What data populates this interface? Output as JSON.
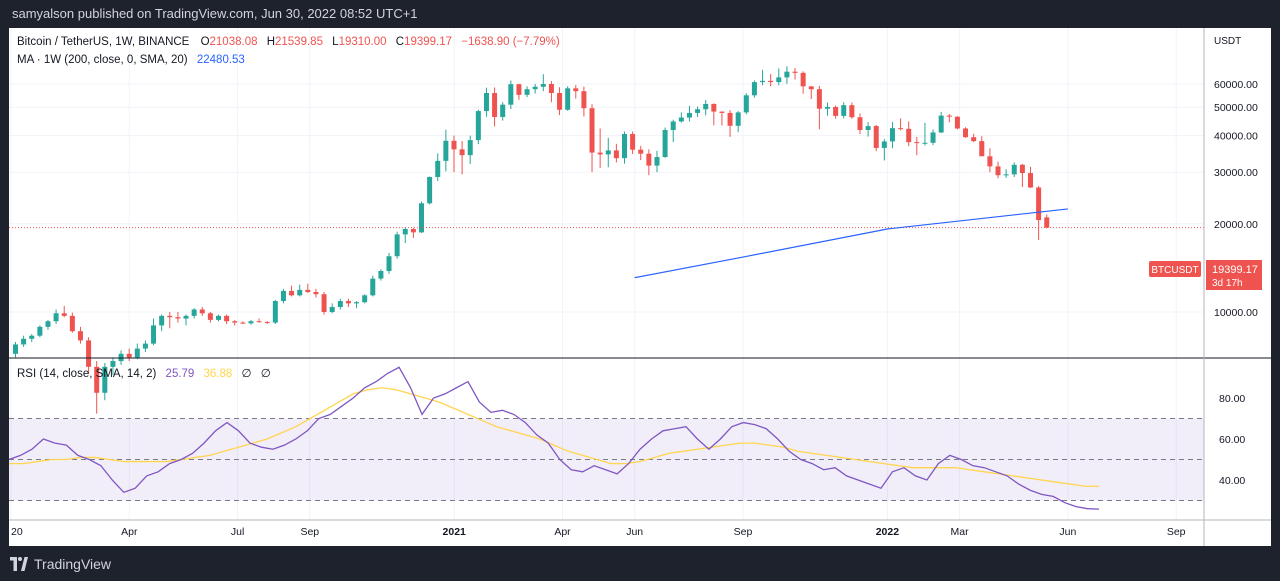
{
  "header": {
    "published_text": "samyalson published on TradingView.com, Jun 30, 2022 08:52 UTC+1"
  },
  "legend": {
    "symbol": "Bitcoin / TetherUS, 1W, BINANCE",
    "open_label": "O",
    "open": "21038.08",
    "high_label": "H",
    "high": "21539.85",
    "low_label": "L",
    "low": "19310.00",
    "close_label": "C",
    "close": "19399.17",
    "change": "−1638.90 (−7.79%)",
    "ma_label": "MA · 1W (200, close, 0, SMA, 20)",
    "ma_value": "22480.53",
    "rsi_label": "RSI (14, close, SMA, 14, 2)",
    "rsi_value": "25.79",
    "rsi_ma_value": "36.88",
    "na1": "∅",
    "na2": "∅"
  },
  "price_scale": {
    "currency": "USDT",
    "ticks": [
      "60000.00",
      "50000.00",
      "40000.00",
      "30000.00",
      "20000.00",
      "10000.00"
    ],
    "symbol_tag": "BTCUSDT",
    "last_price": "19399.17",
    "countdown": "3d 17h"
  },
  "rsi_scale": {
    "ticks": [
      "80.00",
      "60.00",
      "40.00"
    ]
  },
  "time_axis": {
    "labels": [
      "20",
      "Apr",
      "Jul",
      "Sep",
      "2021",
      "Apr",
      "Jun",
      "Sep",
      "2022",
      "Mar",
      "Jun",
      "Sep"
    ]
  },
  "footer": {
    "brand": "TradingView"
  },
  "colors": {
    "up": "#26a69a",
    "down": "#ef5350",
    "ma": "#2962ff",
    "rsi": "#7e57c2",
    "rsi_ma": "#ffd54f",
    "background": "#1e222d"
  },
  "chart_data": [
    {
      "type": "candlestick",
      "title": "Bitcoin / TetherUS, 1W, BINANCE",
      "ylim": [
        0,
        70000
      ],
      "yscale": "log",
      "x_range": [
        "2020-01",
        "2022-09"
      ],
      "candles_ohlc": [
        [
          7200,
          7900,
          7000,
          7750
        ],
        [
          7750,
          8300,
          7600,
          8100
        ],
        [
          8100,
          8400,
          7900,
          8300
        ],
        [
          8300,
          9000,
          8200,
          8900
        ],
        [
          8900,
          9400,
          8700,
          9300
        ],
        [
          9300,
          10200,
          9100,
          9900
        ],
        [
          9900,
          10500,
          9600,
          9700
        ],
        [
          9700,
          9950,
          8500,
          8600
        ],
        [
          8600,
          8900,
          7800,
          8000
        ],
        [
          8000,
          8200,
          6200,
          6500
        ],
        [
          6500,
          6800,
          4500,
          5300
        ],
        [
          5300,
          6700,
          5000,
          6500
        ],
        [
          6500,
          7000,
          6100,
          6800
        ],
        [
          6800,
          7400,
          6600,
          7200
        ],
        [
          7200,
          7500,
          6800,
          7000
        ],
        [
          7000,
          7800,
          6900,
          7500
        ],
        [
          7500,
          8000,
          7300,
          7800
        ],
        [
          7800,
          9500,
          7700,
          9000
        ],
        [
          9000,
          9800,
          8600,
          9700
        ],
        [
          9700,
          10000,
          8800,
          9600
        ],
        [
          9600,
          10000,
          9200,
          9500
        ],
        [
          9500,
          9800,
          9000,
          9700
        ],
        [
          9700,
          10300,
          9500,
          10200
        ],
        [
          10200,
          10400,
          9700,
          9900
        ],
        [
          9900,
          10000,
          9200,
          9400
        ],
        [
          9400,
          9800,
          9300,
          9700
        ],
        [
          9700,
          9800,
          9100,
          9300
        ],
        [
          9300,
          9400,
          9000,
          9200
        ],
        [
          9200,
          9300,
          9100,
          9150
        ],
        [
          9150,
          9400,
          9050,
          9300
        ],
        [
          9300,
          9500,
          9200,
          9250
        ],
        [
          9250,
          9300,
          9100,
          9200
        ],
        [
          9200,
          11000,
          9100,
          10900
        ],
        [
          10900,
          12000,
          10700,
          11800
        ],
        [
          11800,
          12300,
          11300,
          11400
        ],
        [
          11400,
          12400,
          11300,
          11900
        ],
        [
          11900,
          12500,
          11600,
          11700
        ],
        [
          11700,
          12000,
          11200,
          11500
        ],
        [
          11500,
          11700,
          9800,
          10000
        ],
        [
          10000,
          10700,
          9900,
          10400
        ],
        [
          10400,
          11100,
          10200,
          10900
        ],
        [
          10900,
          11100,
          10400,
          10700
        ],
        [
          10700,
          10900,
          10300,
          10800
        ],
        [
          10800,
          11500,
          10700,
          11400
        ],
        [
          11400,
          13300,
          11300,
          13000
        ],
        [
          13000,
          14000,
          12800,
          13800
        ],
        [
          13800,
          15900,
          13500,
          15500
        ],
        [
          15500,
          18800,
          15200,
          18400
        ],
        [
          18400,
          19500,
          17200,
          19200
        ],
        [
          19200,
          19400,
          17900,
          18700
        ],
        [
          18700,
          23800,
          18600,
          23500
        ],
        [
          23500,
          29000,
          23300,
          28900
        ],
        [
          28900,
          34800,
          28000,
          32800
        ],
        [
          32800,
          41900,
          30200,
          38400
        ],
        [
          38400,
          40000,
          30000,
          35900
        ],
        [
          35900,
          38300,
          29500,
          34300
        ],
        [
          34300,
          40000,
          32000,
          38600
        ],
        [
          38600,
          49000,
          37400,
          48500
        ],
        [
          48500,
          58300,
          46400,
          55900
        ],
        [
          55900,
          58400,
          43000,
          46300
        ],
        [
          46300,
          52000,
          45000,
          51000
        ],
        [
          51000,
          61700,
          49300,
          59900
        ],
        [
          59900,
          60100,
          53000,
          55100
        ],
        [
          55100,
          58900,
          54100,
          57600
        ],
        [
          57600,
          60000,
          55700,
          58700
        ],
        [
          58700,
          64800,
          56700,
          60000
        ],
        [
          60000,
          61400,
          52000,
          55900
        ],
        [
          55900,
          58500,
          47000,
          49000
        ],
        [
          49000,
          58900,
          48600,
          58000
        ],
        [
          58000,
          59500,
          53500,
          56700
        ],
        [
          56700,
          58800,
          46500,
          49600
        ],
        [
          49600,
          51200,
          30000,
          35000
        ],
        [
          35000,
          42300,
          31000,
          34500
        ],
        [
          34500,
          39300,
          31200,
          35600
        ],
        [
          35600,
          37500,
          32400,
          33500
        ],
        [
          33500,
          41300,
          32100,
          40500
        ],
        [
          40500,
          41300,
          34600,
          35800
        ],
        [
          35800,
          36900,
          33000,
          34700
        ],
        [
          34700,
          35900,
          29300,
          31600
        ],
        [
          31600,
          35500,
          30000,
          33800
        ],
        [
          33800,
          42600,
          33600,
          41800
        ],
        [
          41800,
          45300,
          38000,
          44700
        ],
        [
          44700,
          48000,
          44300,
          46100
        ],
        [
          46100,
          50500,
          44700,
          47800
        ],
        [
          47800,
          50300,
          46300,
          49200
        ],
        [
          49200,
          52900,
          46900,
          51300
        ],
        [
          51300,
          51500,
          43400,
          48300
        ],
        [
          48300,
          48400,
          43300,
          47800
        ],
        [
          47800,
          48900,
          39600,
          43200
        ],
        [
          43200,
          48500,
          41100,
          48000
        ],
        [
          48000,
          55800,
          47300,
          54900
        ],
        [
          54900,
          61700,
          53900,
          60900
        ],
        [
          60900,
          67000,
          59400,
          61500
        ],
        [
          61500,
          64900,
          58900,
          60900
        ],
        [
          60900,
          67800,
          59400,
          63200
        ],
        [
          63200,
          69000,
          60100,
          66100
        ],
        [
          66100,
          68000,
          62100,
          65500
        ],
        [
          65500,
          66300,
          55600,
          58900
        ],
        [
          58900,
          59000,
          53300,
          57600
        ],
        [
          57600,
          59100,
          42000,
          49400
        ],
        [
          49400,
          51900,
          46800,
          50100
        ],
        [
          50100,
          50700,
          45700,
          46700
        ],
        [
          46700,
          52000,
          45800,
          50800
        ],
        [
          50800,
          51900,
          45700,
          46200
        ],
        [
          46200,
          47600,
          40500,
          41800
        ],
        [
          41800,
          44500,
          39700,
          43100
        ],
        [
          43100,
          43500,
          35400,
          36300
        ],
        [
          36300,
          38900,
          32900,
          38200
        ],
        [
          38200,
          44500,
          36200,
          42400
        ],
        [
          42400,
          45800,
          41700,
          42200
        ],
        [
          42200,
          44700,
          36800,
          38000
        ],
        [
          38000,
          39600,
          34300,
          37700
        ],
        [
          37700,
          44200,
          37000,
          37800
        ],
        [
          37800,
          42000,
          37100,
          41000
        ],
        [
          41000,
          48200,
          40800,
          46800
        ],
        [
          46800,
          47400,
          44400,
          46400
        ],
        [
          46400,
          46600,
          42000,
          42300
        ],
        [
          42300,
          42700,
          39300,
          39500
        ],
        [
          39500,
          40600,
          38000,
          38300
        ],
        [
          38300,
          39800,
          35600,
          34000
        ],
        [
          34000,
          36200,
          30000,
          31400
        ],
        [
          31400,
          32600,
          28600,
          29300
        ],
        [
          29300,
          30700,
          28700,
          29500
        ],
        [
          29500,
          32400,
          28900,
          31800
        ],
        [
          31800,
          32000,
          26700,
          29800
        ],
        [
          29800,
          31300,
          26500,
          26600
        ],
        [
          26600,
          26900,
          17600,
          20600
        ],
        [
          21038.08,
          21539.85,
          19310.0,
          19399.17
        ]
      ]
    },
    {
      "type": "line",
      "title": "MA · 1W (200, close, 0, SMA, 20)",
      "series": [
        {
          "name": "MA",
          "x": [
            "2021-06",
            "2021-09",
            "2022-01",
            "2022-06"
          ],
          "y": [
            13100,
            15400,
            19200,
            22480.53
          ]
        }
      ]
    },
    {
      "type": "line",
      "title": "RSI (14, close, SMA, 14, 2)",
      "ylim": [
        20,
        100
      ],
      "series": [
        {
          "name": "RSI",
          "values": [
            50,
            52,
            55,
            60,
            58,
            57,
            52,
            50,
            47,
            40,
            34,
            36,
            42,
            44,
            48,
            50,
            53,
            58,
            64,
            68,
            64,
            58,
            56,
            55,
            57,
            60,
            64,
            70,
            72,
            76,
            80,
            85,
            88,
            92,
            95,
            85,
            72,
            80,
            82,
            85,
            88,
            78,
            73,
            74,
            72,
            68,
            62,
            58,
            50,
            45,
            44,
            47,
            45,
            43,
            48,
            55,
            60,
            64,
            65,
            66,
            60,
            55,
            60,
            66,
            68,
            67,
            65,
            60,
            54,
            50,
            48,
            45,
            46,
            42,
            40,
            38,
            36,
            44,
            46,
            42,
            40,
            48,
            52,
            50,
            47,
            46,
            44,
            42,
            38,
            35,
            33,
            32,
            29,
            27,
            26,
            25.79
          ]
        },
        {
          "name": "RSI MA",
          "values": [
            48,
            48,
            49,
            50,
            50,
            51,
            51,
            50,
            49,
            49,
            49,
            49,
            50,
            51,
            52,
            54,
            56,
            58,
            60,
            63,
            66,
            70,
            74,
            78,
            82,
            84,
            85,
            84,
            82,
            80,
            78,
            75,
            72,
            69,
            66,
            64,
            62,
            60,
            57,
            54,
            52,
            50,
            48,
            48,
            49,
            51,
            53,
            54,
            55,
            56,
            57,
            58,
            58,
            57,
            56,
            54,
            53,
            52,
            51,
            50,
            49,
            48,
            47,
            46,
            46,
            46,
            46,
            45,
            44,
            43,
            42,
            41,
            40,
            39,
            38,
            37,
            36.88
          ]
        }
      ],
      "bands": [
        30,
        50,
        70
      ]
    }
  ]
}
